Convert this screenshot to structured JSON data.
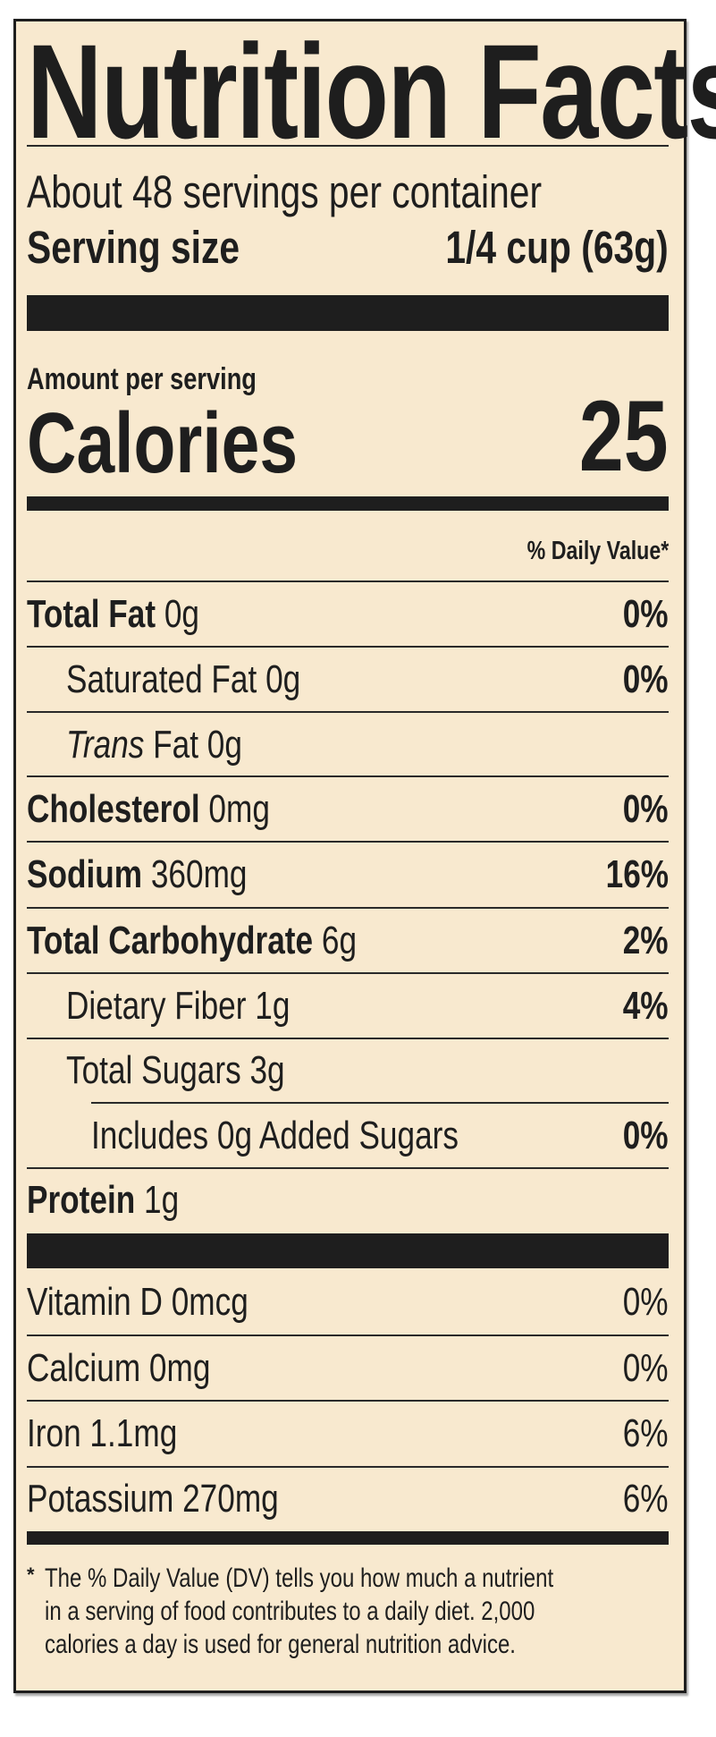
{
  "title": "Nutrition Facts",
  "servings_per_container": "About 48 servings per container",
  "serving_size": {
    "label": "Serving size",
    "value": "1/4 cup (63g)"
  },
  "amount_per_serving": "Amount per serving",
  "calories": {
    "label": "Calories",
    "value": "25"
  },
  "daily_value_header": "% Daily Value*",
  "nutrients": [
    {
      "name": "Total Fat",
      "amount": "0g",
      "dv": "0%"
    },
    {
      "name": "Saturated Fat",
      "amount": "0g",
      "dv": "0%"
    },
    {
      "name": "Trans",
      "name_suffix": " Fat",
      "amount": "0g",
      "dv": ""
    },
    {
      "name": "Cholesterol",
      "amount": "0mg",
      "dv": "0%"
    },
    {
      "name": "Sodium",
      "amount": "360mg",
      "dv": "16%"
    },
    {
      "name": "Total Carbohydrate",
      "amount": "6g",
      "dv": "2%"
    },
    {
      "name": "Dietary Fiber",
      "amount": "1g",
      "dv": "4%"
    },
    {
      "name": "Total Sugars",
      "amount": "3g",
      "dv": ""
    },
    {
      "name": "Includes 0g Added Sugars",
      "amount": "",
      "dv": "0%"
    },
    {
      "name": "Protein",
      "amount": "1g",
      "dv": ""
    }
  ],
  "vitamins": [
    {
      "text": "Vitamin D 0mcg",
      "dv": "0%"
    },
    {
      "text": "Calcium 0mg",
      "dv": "0%"
    },
    {
      "text": "Iron 1.1mg",
      "dv": "6%"
    },
    {
      "text": "Potassium 270mg",
      "dv": "6%"
    }
  ],
  "footnote": {
    "mark": "*",
    "lines": [
      "The % Daily Value (DV) tells you how much a nutrient",
      "in a serving of food contributes to a daily diet. 2,000",
      "calories a day is used for general nutrition advice."
    ]
  },
  "colors": {
    "background": "#f8e9cf",
    "ink": "#1e1e1e"
  }
}
